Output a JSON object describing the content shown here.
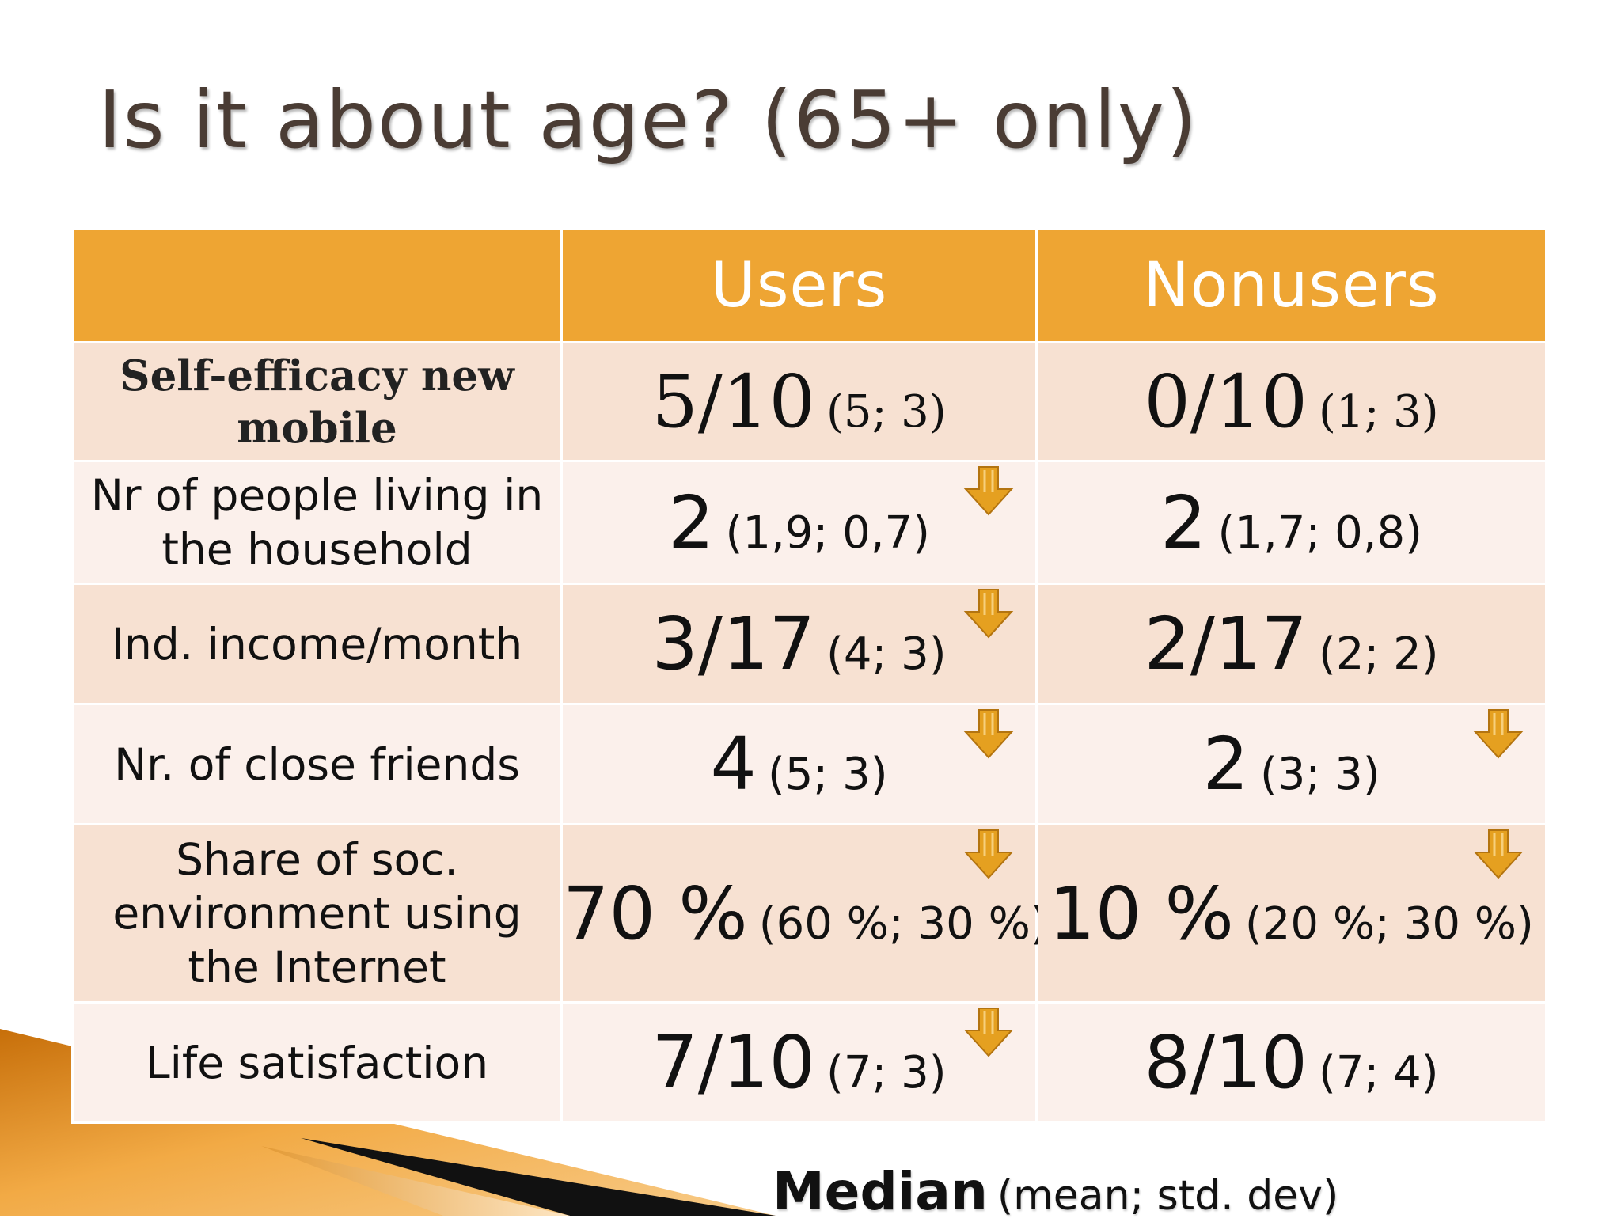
{
  "title": "Is it about age? (65+ only)",
  "columns": [
    "",
    "Users",
    "Nonusers"
  ],
  "rows": [
    {
      "label": "Self-efficacy new mobile",
      "users": {
        "median": "5/10",
        "detail": "(5; 3)",
        "arrow": false
      },
      "nonusers": {
        "median": "0/10",
        "detail": "(1; 3)",
        "arrow": false
      }
    },
    {
      "label": "Nr of people living in the household",
      "users": {
        "median": "2",
        "detail": "(1,9; 0,7)",
        "arrow": true
      },
      "nonusers": {
        "median": "2",
        "detail": "(1,7; 0,8)",
        "arrow": false
      }
    },
    {
      "label": "Ind. income/month",
      "users": {
        "median": "3/17",
        "detail": "(4; 3)",
        "arrow": true
      },
      "nonusers": {
        "median": "2/17",
        "detail": "(2; 2)",
        "arrow": false
      }
    },
    {
      "label": "Nr. of close friends",
      "users": {
        "median": "4",
        "detail": "(5; 3)",
        "arrow": true
      },
      "nonusers": {
        "median": "2",
        "detail": "(3; 3)",
        "arrow": true
      }
    },
    {
      "label": "Share of soc. environment using the Internet",
      "users": {
        "median": "70 %",
        "detail": "(60 %; 30 %)",
        "arrow": true
      },
      "nonusers": {
        "median": "10 %",
        "detail": "(20 %; 30 %)",
        "arrow": true
      }
    },
    {
      "label": "Life satisfaction",
      "users": {
        "median": "7/10",
        "detail": "(7; 3)",
        "arrow": true
      },
      "nonusers": {
        "median": "8/10",
        "detail": "(7; 4)",
        "arrow": false
      }
    }
  ],
  "legend": {
    "strong": "Median",
    "rest": "(mean; std. dev)"
  },
  "colors": {
    "header": "#eea533",
    "row_odd": "#f7e1d2",
    "row_even": "#fbf0eb",
    "arrow": "#e5a020",
    "title": "#4a3c34"
  },
  "icons": {
    "indicator": "down-arrow-icon"
  }
}
